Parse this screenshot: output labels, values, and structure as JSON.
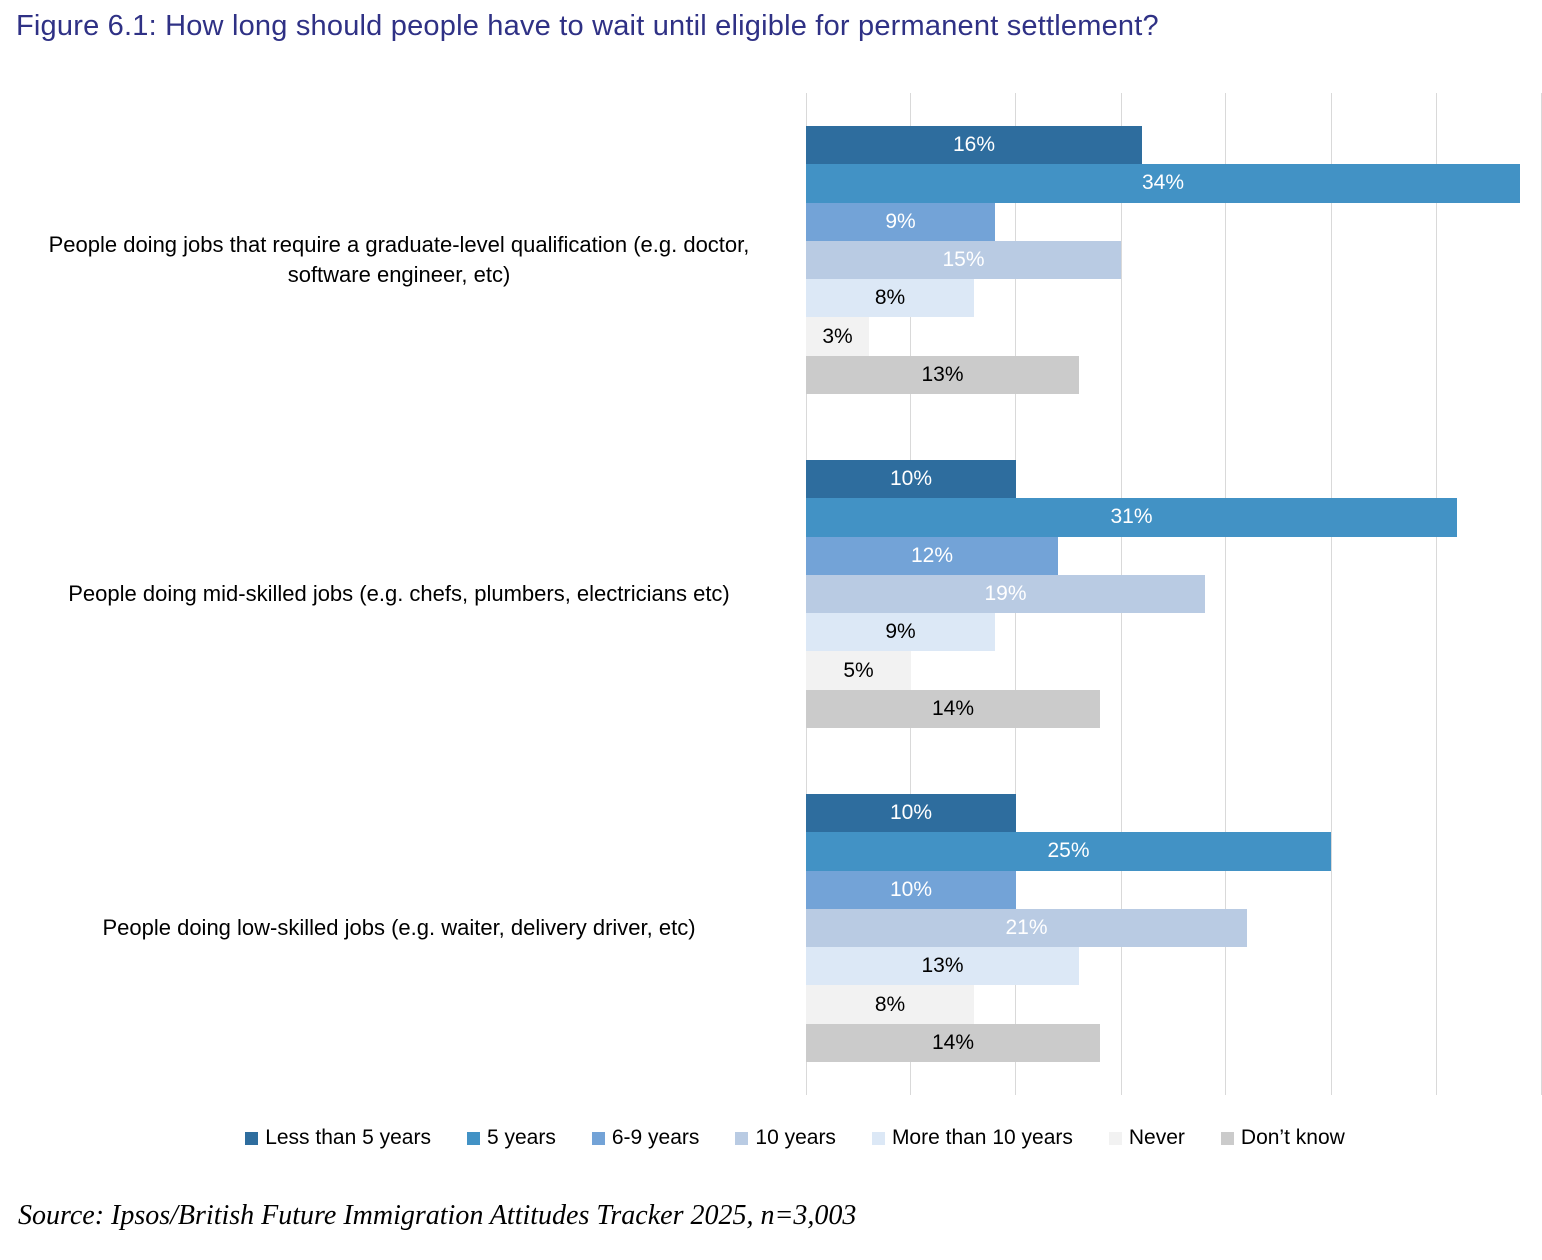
{
  "source": "Source: Ipsos/British Future Immigration Attitudes Tracker 2025, n=3,003",
  "colors": {
    "title_text": "#2F3185",
    "gridline": "#D9D9D9",
    "category_text": "#000000"
  },
  "chart_data": {
    "type": "bar",
    "orientation": "horizontal",
    "title": "Figure 6.1: How long should people have to wait until eligible for permanent settlement?",
    "categories": [
      "People doing jobs that require a graduate-level qualification (e.g. doctor, software engineer, etc)",
      "People doing mid-skilled jobs (e.g. chefs, plumbers, electricians etc)",
      "People doing low-skilled jobs (e.g. waiter, delivery driver, etc)"
    ],
    "series": [
      {
        "name": "Less than 5 years",
        "color": "#2E6D9E",
        "label_color": "#FFFFFF",
        "values": [
          16,
          10,
          10
        ]
      },
      {
        "name": "5 years",
        "color": "#4292C5",
        "label_color": "#FFFFFF",
        "values": [
          34,
          31,
          25
        ]
      },
      {
        "name": "6-9 years",
        "color": "#73A3D7",
        "label_color": "#FFFFFF",
        "values": [
          9,
          12,
          10
        ]
      },
      {
        "name": "10 years",
        "color": "#B9CBE3",
        "label_color": "#FFFFFF",
        "values": [
          15,
          19,
          21
        ]
      },
      {
        "name": "More than 10 years",
        "color": "#DCE8F6",
        "label_color": "#000000",
        "values": [
          8,
          9,
          13
        ]
      },
      {
        "name": "Never",
        "color": "#F2F2F2",
        "label_color": "#000000",
        "values": [
          3,
          5,
          8
        ]
      },
      {
        "name": "Don’t know",
        "color": "#CBCBCB",
        "label_color": "#000000",
        "values": [
          13,
          14,
          14
        ]
      }
    ],
    "value_suffix": "%",
    "xlim": [
      0,
      35
    ],
    "gridline_step": 5,
    "grid": true,
    "legend_position": "bottom"
  }
}
